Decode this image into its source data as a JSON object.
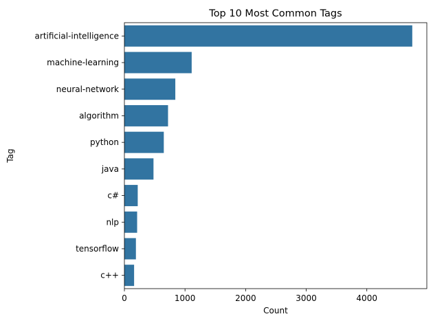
{
  "chart_data": {
    "type": "bar",
    "orientation": "horizontal",
    "title": "Top 10 Most Common Tags",
    "xlabel": "Count",
    "ylabel": "Tag",
    "categories": [
      "artificial-intelligence",
      "machine-learning",
      "neural-network",
      "algorithm",
      "python",
      "java",
      "c#",
      "nlp",
      "tensorflow",
      "c++"
    ],
    "values": [
      4750,
      1110,
      840,
      720,
      650,
      480,
      220,
      210,
      190,
      160
    ],
    "xlim": [
      0,
      4990
    ],
    "xticks": [
      0,
      1000,
      2000,
      3000,
      4000
    ],
    "grid": false,
    "legend": "none",
    "bar_color": "#3274a1"
  }
}
